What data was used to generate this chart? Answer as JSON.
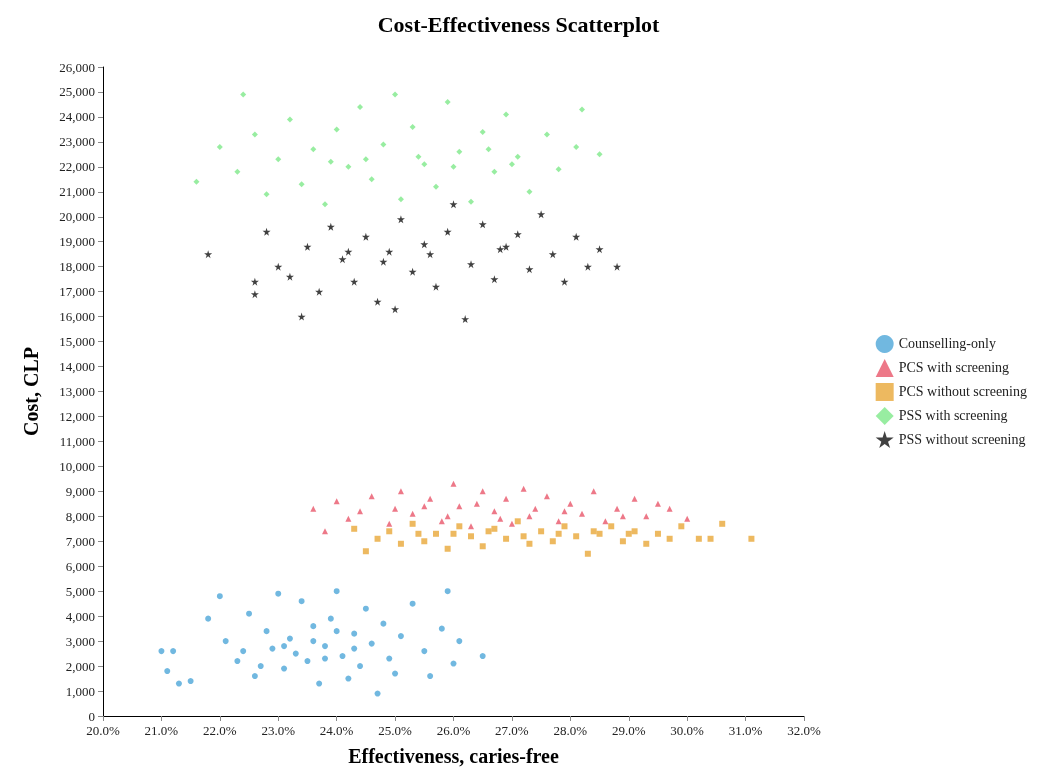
{
  "chart_data": {
    "type": "scatter",
    "title": "Cost-Effectiveness Scatterplot",
    "xlabel": "Effectiveness, caries-free",
    "ylabel": "Cost, CLP",
    "xlim": [
      20,
      32
    ],
    "xticks": [
      {
        "value": 20,
        "label": "20.0%"
      },
      {
        "value": 21,
        "label": "21.0%"
      },
      {
        "value": 22,
        "label": "22.0%"
      },
      {
        "value": 23,
        "label": "23.0%"
      },
      {
        "value": 24,
        "label": "24.0%"
      },
      {
        "value": 25,
        "label": "25.0%"
      },
      {
        "value": 26,
        "label": "26.0%"
      },
      {
        "value": 27,
        "label": "27.0%"
      },
      {
        "value": 28,
        "label": "28.0%"
      },
      {
        "value": 29,
        "label": "29.0%"
      },
      {
        "value": 30,
        "label": "30.0%"
      },
      {
        "value": 31,
        "label": "31.0%"
      },
      {
        "value": 32,
        "label": "32.0%"
      }
    ],
    "ylim": [
      0,
      26000
    ],
    "yticks": [
      0,
      {
        "value": 1000,
        "label": "1,000"
      },
      {
        "value": 2000,
        "label": "2,000"
      },
      {
        "value": 3000,
        "label": "3,000"
      },
      {
        "value": 4000,
        "label": "4,000"
      },
      {
        "value": 5000,
        "label": "5,000"
      },
      {
        "value": 6000,
        "label": "6,000"
      },
      {
        "value": 7000,
        "label": "7,000"
      },
      {
        "value": 8000,
        "label": "8,000"
      },
      {
        "value": 9000,
        "label": "9,000"
      },
      {
        "value": 10000,
        "label": "10,000"
      },
      {
        "value": 11000,
        "label": "11,000"
      },
      {
        "value": 12000,
        "label": "12,000"
      },
      {
        "value": 13000,
        "label": "13,000"
      },
      {
        "value": 14000,
        "label": "14,000"
      },
      {
        "value": 15000,
        "label": "15,000"
      },
      {
        "value": 16000,
        "label": "16,000"
      },
      {
        "value": 17000,
        "label": "17,000"
      },
      {
        "value": 18000,
        "label": "18,000"
      },
      {
        "value": 19000,
        "label": "19,000"
      },
      {
        "value": 20000,
        "label": "20,000"
      },
      {
        "value": 21000,
        "label": "21,000"
      },
      {
        "value": 22000,
        "label": "22,000"
      },
      {
        "value": 23000,
        "label": "23,000"
      },
      {
        "value": 24000,
        "label": "24,000"
      },
      {
        "value": 25000,
        "label": "25,000"
      },
      {
        "value": 26000,
        "label": "26,000"
      }
    ],
    "grid": false,
    "legend": "right",
    "series": [
      {
        "name": "Counselling-only",
        "color": "#4ea6d8",
        "marker": "circle",
        "x": [
          21.0,
          21.2,
          21.1,
          21.3,
          21.5,
          21.8,
          22.0,
          22.1,
          22.3,
          22.5,
          22.6,
          22.8,
          22.9,
          23.0,
          23.1,
          23.2,
          23.3,
          23.4,
          23.5,
          23.6,
          23.7,
          23.8,
          23.9,
          24.0,
          24.1,
          24.2,
          24.3,
          24.4,
          24.5,
          24.6,
          24.7,
          24.8,
          24.9,
          25.0,
          25.1,
          25.3,
          25.5,
          25.6,
          25.8,
          25.9,
          26.0,
          26.1,
          26.5,
          22.4,
          23.1,
          23.8,
          24.3,
          23.6,
          24.0,
          22.7
        ],
        "values": [
          2600,
          2600,
          1800,
          1300,
          1400,
          3900,
          4800,
          3000,
          2200,
          4100,
          1600,
          3400,
          2700,
          4900,
          1900,
          3100,
          2500,
          4600,
          2200,
          3600,
          1300,
          2800,
          3900,
          5000,
          2400,
          1500,
          3300,
          2000,
          4300,
          2900,
          900,
          3700,
          2300,
          1700,
          3200,
          4500,
          2600,
          1600,
          3500,
          5000,
          2100,
          3000,
          2400,
          2600,
          2800,
          2300,
          2700,
          3000,
          3400,
          2000
        ]
      },
      {
        "name": "PCS with screening",
        "color": "#e8566a",
        "marker": "triangle",
        "x": [
          23.6,
          23.8,
          24.0,
          24.2,
          24.6,
          24.9,
          25.1,
          25.3,
          25.6,
          25.8,
          26.0,
          26.1,
          26.3,
          26.5,
          26.7,
          26.9,
          27.0,
          27.2,
          27.4,
          27.6,
          27.8,
          28.0,
          28.2,
          28.4,
          28.6,
          28.8,
          29.1,
          29.3,
          29.5,
          29.7,
          30.0,
          25.0,
          25.9,
          26.4,
          27.3,
          24.4,
          28.9,
          26.8,
          25.5,
          27.9
        ],
        "values": [
          8300,
          7400,
          8600,
          7900,
          8800,
          7700,
          9000,
          8100,
          8700,
          7800,
          9300,
          8400,
          7600,
          9000,
          8200,
          8700,
          7700,
          9100,
          8300,
          8800,
          7800,
          8500,
          8100,
          9000,
          7800,
          8300,
          8700,
          8000,
          8500,
          8300,
          7900,
          8300,
          8000,
          8500,
          8000,
          8200,
          8000,
          7900,
          8400,
          8200
        ]
      },
      {
        "name": "PCS without screening",
        "color": "#e8a838",
        "marker": "square",
        "x": [
          24.3,
          24.5,
          24.7,
          24.9,
          25.1,
          25.3,
          25.5,
          25.7,
          25.9,
          26.1,
          26.3,
          26.5,
          26.7,
          26.9,
          27.1,
          27.3,
          27.5,
          27.7,
          27.9,
          28.1,
          28.3,
          28.5,
          28.7,
          28.9,
          29.1,
          29.3,
          29.5,
          29.7,
          29.9,
          30.2,
          30.4,
          30.6,
          31.1,
          26.0,
          26.6,
          27.2,
          27.8,
          28.4,
          25.4,
          29.0
        ],
        "values": [
          7500,
          6600,
          7100,
          7400,
          6900,
          7700,
          7000,
          7300,
          6700,
          7600,
          7200,
          6800,
          7500,
          7100,
          7800,
          6900,
          7400,
          7000,
          7600,
          7200,
          6500,
          7300,
          7600,
          7000,
          7400,
          6900,
          7300,
          7100,
          7600,
          7100,
          7100,
          7700,
          7100,
          7300,
          7400,
          7200,
          7300,
          7400,
          7300,
          7300
        ]
      },
      {
        "name": "PSS with screening",
        "color": "#7ee88a",
        "marker": "diamond",
        "x": [
          21.6,
          22.0,
          22.3,
          22.4,
          22.6,
          22.8,
          23.0,
          23.2,
          23.4,
          23.6,
          23.8,
          24.0,
          24.2,
          24.4,
          24.6,
          24.8,
          25.0,
          25.1,
          25.3,
          25.5,
          25.7,
          25.9,
          26.1,
          26.3,
          26.5,
          26.7,
          26.9,
          27.1,
          27.3,
          27.6,
          27.8,
          28.1,
          28.2,
          28.5,
          24.5,
          25.4,
          26.0,
          23.9,
          26.6,
          27.0
        ],
        "values": [
          21400,
          22800,
          21800,
          24900,
          23300,
          20900,
          22300,
          23900,
          21300,
          22700,
          20500,
          23500,
          22000,
          24400,
          21500,
          22900,
          24900,
          20700,
          23600,
          22100,
          21200,
          24600,
          22600,
          20600,
          23400,
          21800,
          24100,
          22400,
          21000,
          23300,
          21900,
          22800,
          24300,
          22500,
          22300,
          22400,
          22000,
          22200,
          22700,
          22100
        ]
      },
      {
        "name": "PSS without screening",
        "color": "#111111",
        "marker": "star",
        "x": [
          21.8,
          22.6,
          22.6,
          22.8,
          23.0,
          23.2,
          23.4,
          23.5,
          23.7,
          23.9,
          24.1,
          24.3,
          24.5,
          24.7,
          24.9,
          25.0,
          25.1,
          25.3,
          25.5,
          25.7,
          25.9,
          26.0,
          26.2,
          26.3,
          26.5,
          26.7,
          26.9,
          27.1,
          27.3,
          27.5,
          27.7,
          27.9,
          28.1,
          28.3,
          28.5,
          28.8,
          24.2,
          25.6,
          26.8,
          24.8
        ],
        "values": [
          18500,
          17400,
          16900,
          19400,
          18000,
          17600,
          16000,
          18800,
          17000,
          19600,
          18300,
          17400,
          19200,
          16600,
          18600,
          16300,
          19900,
          17800,
          18900,
          17200,
          19400,
          20500,
          15900,
          18100,
          19700,
          17500,
          18800,
          19300,
          17900,
          20100,
          18500,
          17400,
          19200,
          18000,
          18700,
          18000,
          18600,
          18500,
          18700,
          18200
        ]
      }
    ]
  }
}
